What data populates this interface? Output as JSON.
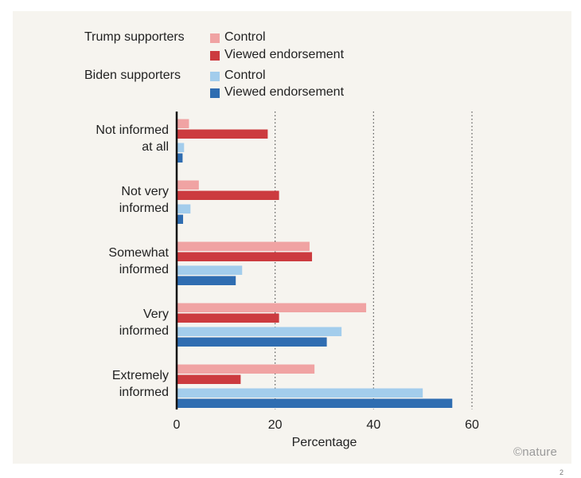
{
  "chart_data": {
    "type": "bar",
    "orientation": "horizontal",
    "title": "",
    "xlabel": "Percentage",
    "ylabel": "",
    "xlim": [
      0,
      60
    ],
    "xticks": [
      0,
      20,
      40,
      60
    ],
    "grid": "vertical dotted",
    "legend_placement": "top",
    "categories": [
      [
        "Not informed",
        "at all"
      ],
      [
        "Not very",
        "informed"
      ],
      [
        "Somewhat",
        "informed"
      ],
      [
        "Very",
        "informed"
      ],
      [
        "Extremely",
        "informed"
      ]
    ],
    "groups": [
      {
        "label": "Trump supporters",
        "series": [
          {
            "name": "Control",
            "color": "#f0a3a3",
            "values": [
              2.5,
              4.5,
              27,
              38.5,
              28
            ]
          },
          {
            "name": "Viewed endorsement",
            "color": "#cc3b3f",
            "values": [
              18.5,
              20.8,
              27.5,
              20.8,
              13
            ]
          }
        ]
      },
      {
        "label": "Biden supporters",
        "series": [
          {
            "name": "Control",
            "color": "#a3cdec",
            "values": [
              1.5,
              2.8,
              13.3,
              33.5,
              50
            ]
          },
          {
            "name": "Viewed endorsement",
            "color": "#2f6db1",
            "values": [
              1.2,
              1.3,
              12,
              30.5,
              56
            ]
          }
        ]
      }
    ]
  },
  "credit": "©nature",
  "page_marker": "2"
}
